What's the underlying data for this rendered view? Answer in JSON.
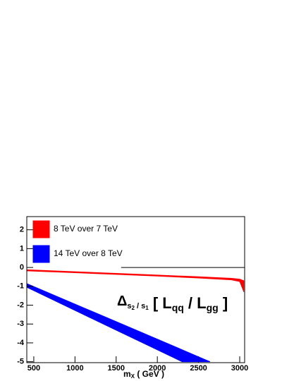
{
  "chart_data": {
    "type": "band",
    "xlim": [
      415,
      3060
    ],
    "ylim": [
      -5.05,
      2.7
    ],
    "xticks": [
      500,
      1000,
      1500,
      2000,
      2500,
      3000
    ],
    "yticks": [
      -5,
      -4,
      -3,
      -2,
      -1,
      0,
      1,
      2
    ],
    "grid": false,
    "xlabel_parts": [
      "m",
      "X",
      " ( GeV )"
    ],
    "annotation_parts": [
      "Δ",
      "s",
      "2",
      " / s",
      "1",
      " [ L",
      "qq",
      " / L",
      "gg",
      " ]"
    ],
    "hline": {
      "y": 0,
      "xstart": 1560,
      "color": "#000000"
    },
    "legend": "upper left",
    "series": [
      {
        "name": "8 TeV over 7 TeV",
        "color": "#ff0000",
        "x": [
          415,
          1000,
          1500,
          2000,
          2500,
          2900,
          3000,
          3050
        ],
        "upper": [
          -0.12,
          -0.22,
          -0.31,
          -0.4,
          -0.49,
          -0.57,
          -0.62,
          -0.7
        ],
        "lower": [
          -0.18,
          -0.28,
          -0.37,
          -0.46,
          -0.56,
          -0.66,
          -0.75,
          -1.3
        ]
      },
      {
        "name": "14 TeV over 8 TeV",
        "color": "#0000ff",
        "x": [
          415,
          1000,
          1500,
          2000,
          2300,
          2640
        ],
        "upper": [
          -0.85,
          -1.94,
          -2.87,
          -3.8,
          -4.36,
          -5.0
        ],
        "lower": [
          -1.05,
          -2.28,
          -3.33,
          -4.37,
          -5.0,
          -5.0
        ]
      }
    ]
  }
}
